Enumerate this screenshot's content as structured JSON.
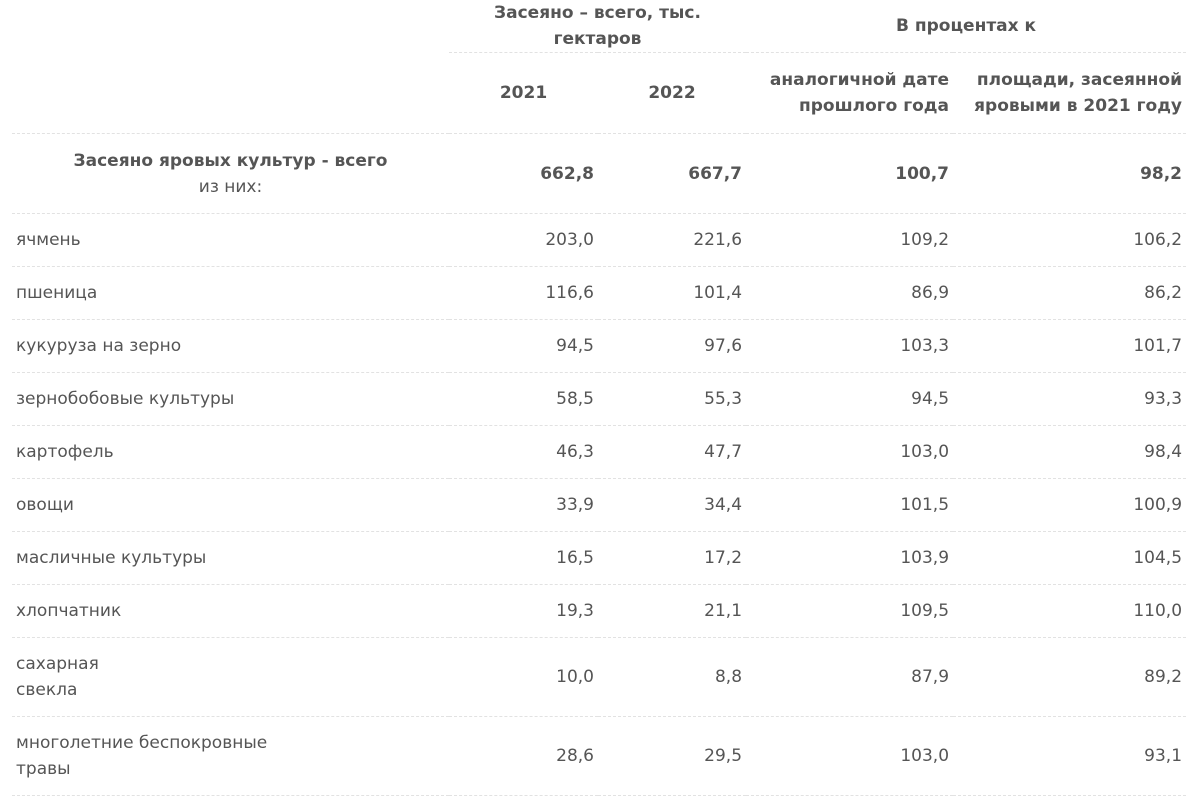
{
  "header": {
    "group_sown": "Засеяно – всего, тыс. гектаров",
    "group_percent": "В процентах к",
    "year_2021": "2021",
    "year_2022": "2022",
    "pct_prev_year": "аналогичной дате прошлого года",
    "pct_area_2021": "площади, засеянной яровыми в 2021 году"
  },
  "total": {
    "label": "Засеяно яровых культур - всего",
    "sublabel": "из них:",
    "v2021": "662,8",
    "v2022": "667,7",
    "pct_prev": "100,7",
    "pct_area": "98,2"
  },
  "rows": [
    {
      "name": "ячмень",
      "v2021": "203,0",
      "v2022": "221,6",
      "pct_prev": "109,2",
      "pct_area": "106,2"
    },
    {
      "name": "пшеница",
      "v2021": "116,6",
      "v2022": "101,4",
      "pct_prev": "86,9",
      "pct_area": "86,2"
    },
    {
      "name": "кукуруза на зерно",
      "v2021": "94,5",
      "v2022": "97,6",
      "pct_prev": "103,3",
      "pct_area": "101,7"
    },
    {
      "name": "зернобобовые культуры",
      "v2021": "58,5",
      "v2022": "55,3",
      "pct_prev": "94,5",
      "pct_area": "93,3"
    },
    {
      "name": "картофель",
      "v2021": "46,3",
      "v2022": "47,7",
      "pct_prev": "103,0",
      "pct_area": "98,4"
    },
    {
      "name": "овощи",
      "v2021": "33,9",
      "v2022": "34,4",
      "pct_prev": "101,5",
      "pct_area": "100,9"
    },
    {
      "name": "масличные культуры",
      "v2021": "16,5",
      "v2022": "17,2",
      "pct_prev": "103,9",
      "pct_area": "104,5"
    },
    {
      "name": "хлопчатник",
      "v2021": "19,3",
      "v2022": "21,1",
      "pct_prev": "109,5",
      "pct_area": "110,0"
    },
    {
      "name": "сахарная свекла",
      "v2021": "10,0",
      "v2022": "8,8",
      "pct_prev": "87,9",
      "pct_area": "89,2"
    },
    {
      "name": "многолетние беспокровные травы",
      "v2021": "28,6",
      "v2022": "29,5",
      "pct_prev": "103,0",
      "pct_area": "93,1"
    }
  ]
}
